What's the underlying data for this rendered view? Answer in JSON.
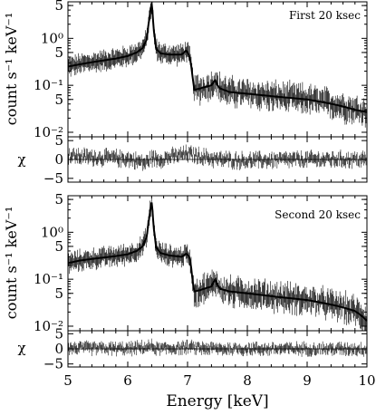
{
  "figure": {
    "xlabel": "Energy [keV]",
    "y_spec_label": "count s⁻¹ keV⁻¹",
    "y_res_label": "χ"
  },
  "chart_data": [
    {
      "type": "line",
      "panel": "spectrum",
      "annotation": "First 20 ksec",
      "ylabel": "count s⁻¹ keV⁻¹",
      "xlim": [
        5,
        10
      ],
      "ylim": [
        0.008,
        6
      ],
      "yscale": "log",
      "x_ticks": [
        5,
        6,
        7,
        8,
        9,
        10
      ],
      "y_ticks": [
        {
          "value": 5,
          "label": "5"
        },
        {
          "value": 1,
          "label": "10⁰"
        },
        {
          "value": 0.5,
          "label": "5"
        },
        {
          "value": 0.1,
          "label": "10⁻¹"
        },
        {
          "value": 0.05,
          "label": "5"
        },
        {
          "value": 0.01,
          "label": "10⁻²"
        }
      ],
      "series": [
        {
          "role": "model",
          "x": [
            5.0,
            5.2,
            5.4,
            5.6,
            5.8,
            6.0,
            6.15,
            6.25,
            6.32,
            6.36,
            6.4,
            6.43,
            6.47,
            6.55,
            6.7,
            6.9,
            6.98,
            7.03,
            7.08,
            7.11,
            7.2,
            7.4,
            7.46,
            7.5,
            7.55,
            7.7,
            8.0,
            8.5,
            9.0,
            9.5,
            9.8,
            10.0
          ],
          "values": [
            0.25,
            0.28,
            0.31,
            0.34,
            0.37,
            0.42,
            0.5,
            0.62,
            0.95,
            2.5,
            5.5,
            1.6,
            0.6,
            0.48,
            0.45,
            0.45,
            0.55,
            0.42,
            0.16,
            0.08,
            0.085,
            0.1,
            0.13,
            0.1,
            0.085,
            0.072,
            0.066,
            0.057,
            0.05,
            0.038,
            0.03,
            0.027
          ]
        }
      ]
    },
    {
      "type": "scatter",
      "panel": "residuals",
      "ylabel": "χ",
      "xlim": [
        5,
        10
      ],
      "ylim": [
        -6,
        6
      ],
      "x_ticks": [
        5,
        6,
        7,
        8,
        9,
        10
      ],
      "y_ticks": [
        {
          "value": 5,
          "label": "5"
        },
        {
          "value": 0,
          "label": "0"
        },
        {
          "value": -5,
          "label": "−5"
        }
      ],
      "series": [
        {
          "role": "residuals",
          "x": [
            5.0,
            5.5,
            6.0,
            6.3,
            6.4,
            6.5,
            7.0,
            7.5,
            8.0,
            9.0,
            10.0
          ],
          "values": [
            1.0,
            0.5,
            0.2,
            -1.0,
            0.5,
            0.0,
            1.5,
            0.0,
            -0.3,
            0.0,
            0.0
          ]
        }
      ]
    },
    {
      "type": "line",
      "panel": "spectrum",
      "annotation": "Second 20 ksec",
      "ylabel": "count s⁻¹ keV⁻¹",
      "xlim": [
        5,
        10
      ],
      "ylim": [
        0.008,
        6
      ],
      "yscale": "log",
      "x_ticks": [
        5,
        6,
        7,
        8,
        9,
        10
      ],
      "y_ticks": [
        {
          "value": 5,
          "label": "5"
        },
        {
          "value": 1,
          "label": "10⁰"
        },
        {
          "value": 0.5,
          "label": "5"
        },
        {
          "value": 0.1,
          "label": "10⁻¹"
        },
        {
          "value": 0.05,
          "label": "5"
        },
        {
          "value": 0.01,
          "label": "10⁻²"
        }
      ],
      "series": [
        {
          "role": "model",
          "x": [
            5.0,
            5.2,
            5.4,
            5.6,
            5.8,
            6.0,
            6.15,
            6.25,
            6.32,
            6.36,
            6.4,
            6.43,
            6.47,
            6.55,
            6.7,
            6.9,
            6.98,
            7.03,
            7.08,
            7.11,
            7.2,
            7.4,
            7.46,
            7.5,
            7.55,
            7.7,
            8.0,
            8.5,
            9.0,
            9.5,
            9.8,
            10.0
          ],
          "values": [
            0.22,
            0.25,
            0.27,
            0.29,
            0.31,
            0.34,
            0.4,
            0.5,
            0.8,
            2.0,
            4.3,
            1.3,
            0.48,
            0.36,
            0.32,
            0.3,
            0.35,
            0.3,
            0.1,
            0.055,
            0.058,
            0.07,
            0.1,
            0.075,
            0.062,
            0.055,
            0.05,
            0.042,
            0.036,
            0.027,
            0.021,
            0.013
          ]
        }
      ]
    },
    {
      "type": "scatter",
      "panel": "residuals",
      "ylabel": "χ",
      "xlim": [
        5,
        10
      ],
      "ylim": [
        -6,
        6
      ],
      "x_ticks": [
        5,
        6,
        7,
        8,
        9,
        10
      ],
      "y_ticks": [
        {
          "value": 5,
          "label": "5"
        },
        {
          "value": 0,
          "label": "0"
        },
        {
          "value": -5,
          "label": "−5"
        }
      ],
      "series": [
        {
          "role": "residuals",
          "x": [
            5.0,
            5.5,
            6.0,
            6.3,
            6.4,
            6.5,
            7.0,
            7.5,
            8.0,
            9.0,
            10.0
          ],
          "values": [
            0.3,
            0.2,
            0.0,
            0.5,
            0.8,
            0.0,
            0.5,
            0.0,
            0.0,
            0.0,
            0.0
          ]
        }
      ]
    }
  ]
}
